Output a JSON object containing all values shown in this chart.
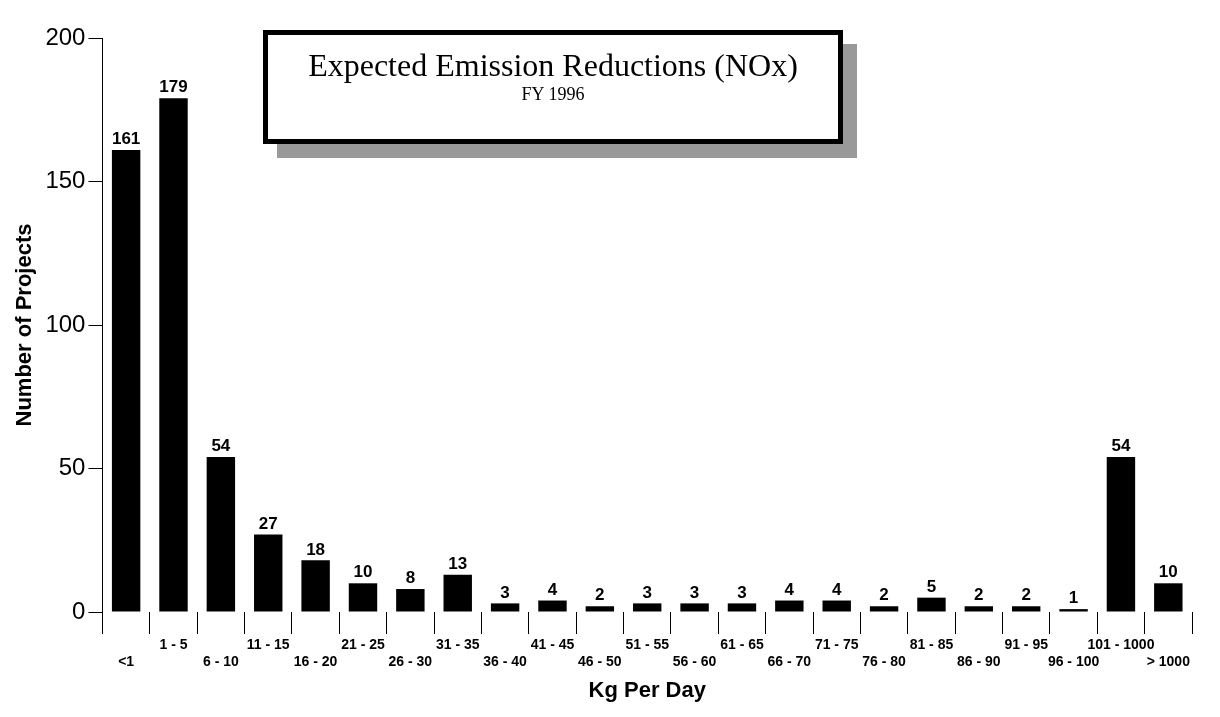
{
  "chart_data": {
    "type": "bar",
    "title": "Expected Emission Reductions (NOx)",
    "subtitle": "FY 1996",
    "xlabel": "Kg Per Day",
    "ylabel": "Number of Projects",
    "categories": [
      "<1",
      "1 - 5",
      "6 - 10",
      "11 - 15",
      "16 - 20",
      "21 - 25",
      "26 - 30",
      "31 - 35",
      "36 - 40",
      "41 - 45",
      "46 - 50",
      "51 - 55",
      "56 - 60",
      "61 - 65",
      "66 - 70",
      "71 - 75",
      "76 - 80",
      "81 - 85",
      "86 - 90",
      "91 - 95",
      "96 - 100",
      "101 - 1000",
      "> 1000"
    ],
    "values": [
      161,
      179,
      54,
      27,
      18,
      10,
      8,
      13,
      3,
      4,
      2,
      3,
      3,
      3,
      4,
      4,
      2,
      5,
      2,
      2,
      1,
      54,
      10
    ],
    "color": "#000000",
    "ylim": [
      0,
      200
    ],
    "yticks": [
      0,
      50,
      100,
      150,
      200
    ],
    "grid": false,
    "legend": false,
    "data_labels": true
  }
}
